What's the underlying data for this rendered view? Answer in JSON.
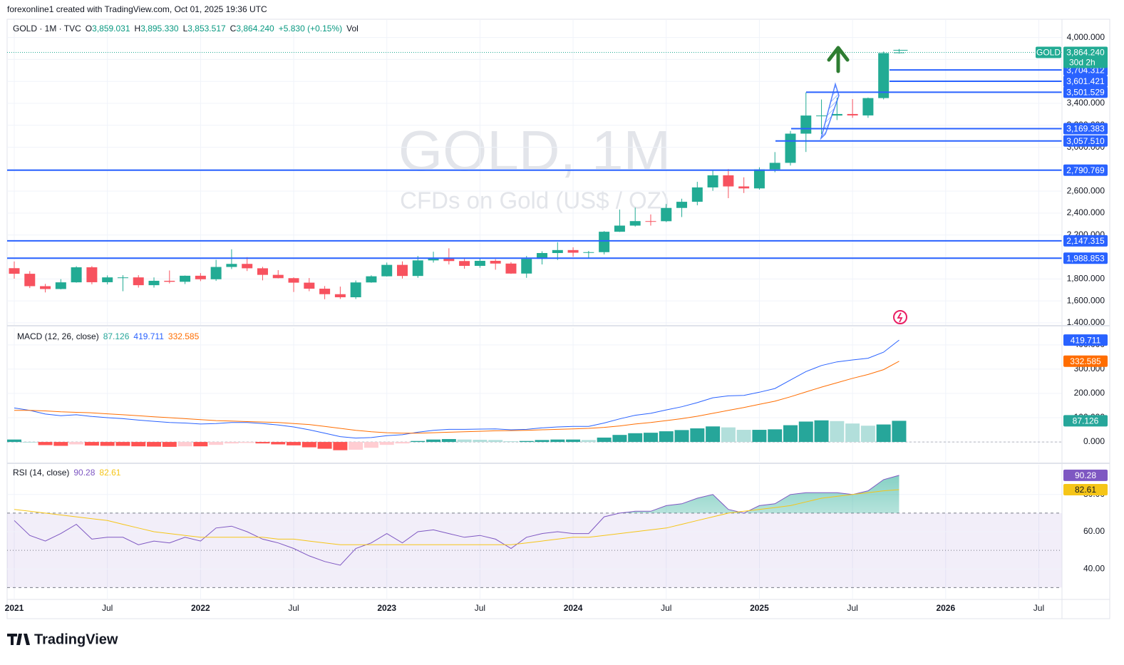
{
  "header": {
    "credit": "forexonline1 created with TradingView.com, Oct 01, 2025 19:36 UTC",
    "symbol": "GOLD · 1M · TVC",
    "o_key": "O",
    "o_val": "3,859.031",
    "h_key": "H",
    "h_val": "3,895.330",
    "l_key": "L",
    "l_val": "3,853.517",
    "c_key": "C",
    "c_val": "3,864.240",
    "change": "+5.830 (+0.15%)",
    "vol": "Vol"
  },
  "watermark": {
    "title": "GOLD, 1M",
    "subtitle": "CFDs on Gold (US$ / OZ)"
  },
  "footer": {
    "brand": "TradingView"
  },
  "chart_data": [
    {
      "type": "candlestick",
      "x": [
        "2021-01",
        "2021-02",
        "2021-03",
        "2021-04",
        "2021-05",
        "2021-06",
        "2021-07",
        "2021-08",
        "2021-09",
        "2021-10",
        "2021-11",
        "2021-12",
        "2022-01",
        "2022-02",
        "2022-03",
        "2022-04",
        "2022-05",
        "2022-06",
        "2022-07",
        "2022-08",
        "2022-09",
        "2022-10",
        "2022-11",
        "2022-12",
        "2023-01",
        "2023-02",
        "2023-03",
        "2023-04",
        "2023-05",
        "2023-06",
        "2023-07",
        "2023-08",
        "2023-09",
        "2023-10",
        "2023-11",
        "2023-12",
        "2024-01",
        "2024-02",
        "2024-03",
        "2024-04",
        "2024-05",
        "2024-06",
        "2024-07",
        "2024-08",
        "2024-09",
        "2024-10",
        "2024-11",
        "2024-12",
        "2025-01",
        "2025-02",
        "2025-03",
        "2025-04",
        "2025-05",
        "2025-06",
        "2025-07",
        "2025-08",
        "2025-09",
        "2025-10"
      ],
      "open": [
        1898,
        1847,
        1734,
        1708,
        1769,
        1906,
        1770,
        1814,
        1814,
        1743,
        1783,
        1774,
        1829,
        1797,
        1909,
        1937,
        1897,
        1837,
        1807,
        1766,
        1711,
        1661,
        1633,
        1768,
        1824,
        1928,
        1827,
        1969,
        1990,
        1963,
        1919,
        1965,
        1940,
        1849,
        1983,
        2036,
        2063,
        2039,
        2044,
        2230,
        2286,
        2327,
        2326,
        2447,
        2503,
        2634,
        2744,
        2643,
        2625,
        2798,
        2858,
        3124,
        3289,
        3289,
        3303,
        3290,
        3448,
        3859.031
      ],
      "high": [
        1959,
        1871,
        1755,
        1798,
        1916,
        1917,
        1832,
        1834,
        1834,
        1814,
        1877,
        1831,
        1853,
        1974,
        2070,
        1998,
        1910,
        1880,
        1814,
        1808,
        1735,
        1730,
        1786,
        1833,
        1949,
        1960,
        2009,
        2048,
        2079,
        1983,
        1987,
        1980,
        1953,
        2009,
        2052,
        2135,
        2088,
        2055,
        2236,
        2432,
        2450,
        2388,
        2483,
        2531,
        2685,
        2790,
        2801,
        2726,
        2817,
        2956,
        3148,
        3500,
        3435,
        3452,
        3439,
        3453,
        3872,
        3895.33
      ],
      "low": [
        1802,
        1717,
        1677,
        1705,
        1766,
        1751,
        1750,
        1688,
        1721,
        1721,
        1759,
        1753,
        1780,
        1782,
        1890,
        1872,
        1787,
        1805,
        1681,
        1688,
        1615,
        1618,
        1617,
        1765,
        1822,
        1804,
        1810,
        1949,
        1932,
        1893,
        1902,
        1884,
        1846,
        1810,
        1932,
        1973,
        2002,
        1984,
        2024,
        2228,
        2277,
        2286,
        2318,
        2364,
        2471,
        2603,
        2536,
        2583,
        2614,
        2772,
        2833,
        2957,
        3120,
        3248,
        3268,
        3268,
        3436,
        3853.517
      ],
      "close": [
        1847,
        1734,
        1708,
        1769,
        1906,
        1770,
        1814,
        1814,
        1743,
        1783,
        1774,
        1829,
        1797,
        1909,
        1937,
        1897,
        1837,
        1807,
        1766,
        1711,
        1661,
        1633,
        1768,
        1824,
        1928,
        1827,
        1969,
        1990,
        1963,
        1919,
        1965,
        1940,
        1849,
        1983,
        2036,
        2063,
        2039,
        2044,
        2230,
        2286,
        2327,
        2326,
        2447,
        2503,
        2634,
        2744,
        2643,
        2625,
        2798,
        2858,
        3124,
        3289,
        3289,
        3303,
        3290,
        3448,
        3858,
        3864.24
      ],
      "up_color": "#22ab94",
      "down_color": "#f7525f",
      "ylim": [
        1380,
        4160
      ],
      "yticks": [
        {
          "value": 1400,
          "label": "1,400.000"
        },
        {
          "value": 1600,
          "label": "1,600.000"
        },
        {
          "value": 1800,
          "label": "1,800.000"
        },
        {
          "value": 2000,
          "label": "2,000.000"
        },
        {
          "value": 2200,
          "label": "2,200.000"
        },
        {
          "value": 2400,
          "label": "2,400.000"
        },
        {
          "value": 2600,
          "label": "2,600.000"
        },
        {
          "value": 2800,
          "label": "2,800.000"
        },
        {
          "value": 3000,
          "label": "3,000.000"
        },
        {
          "value": 3200,
          "label": "3,200.000"
        },
        {
          "value": 3400,
          "label": "3,400.000"
        },
        {
          "value": 3600,
          "label": "3,600.000"
        },
        {
          "value": 3800,
          "label": "3,800.000"
        },
        {
          "value": 4000,
          "label": "4,000.000"
        }
      ],
      "xticks": [
        {
          "value": "2021-01",
          "label": "2021"
        },
        {
          "value": "2021-07",
          "label": "Jul"
        },
        {
          "value": "2022-01",
          "label": "2022"
        },
        {
          "value": "2022-07",
          "label": "Jul"
        },
        {
          "value": "2023-01",
          "label": "2023"
        },
        {
          "value": "2023-07",
          "label": "Jul"
        },
        {
          "value": "2024-01",
          "label": "2024"
        },
        {
          "value": "2024-07",
          "label": "Jul"
        },
        {
          "value": "2025-01",
          "label": "2025"
        },
        {
          "value": "2025-07",
          "label": "Jul"
        },
        {
          "value": "2026-01",
          "label": "2026"
        },
        {
          "value": "2026-07",
          "label": "Jul"
        }
      ],
      "grid": true,
      "levels": [
        {
          "value": 3704.312,
          "label": "3,704.312"
        },
        {
          "value": 3601.421,
          "label": "3,601.421"
        },
        {
          "value": 3501.529,
          "label": "3,501.529"
        },
        {
          "value": 3169.383,
          "label": "3,169.383"
        },
        {
          "value": 3057.51,
          "label": "3,057.510"
        },
        {
          "value": 2790.769,
          "label": "2,790.769"
        },
        {
          "value": 2147.315,
          "label": "2,147.315"
        },
        {
          "value": 1988.853,
          "label": "1,988.853"
        }
      ],
      "level_color": "#2962ff",
      "last_price": {
        "value": 3864.24,
        "label": "3,864.240",
        "tag": "GOLD",
        "countdown": "30d 2h"
      }
    },
    {
      "type": "macd",
      "title": "MACD (12, 26, close)",
      "ylim": [
        -82,
        470
      ],
      "yticks": [
        {
          "value": 0,
          "label": "0.000"
        },
        {
          "value": 100,
          "label": "100.000"
        },
        {
          "value": 200,
          "label": "200.000"
        },
        {
          "value": 300,
          "label": "300.000"
        },
        {
          "value": 400,
          "label": "400.000"
        }
      ],
      "hist_colors": {
        "up_rising": "#26a69a",
        "up_falling": "#b2dfdb",
        "down_falling": "#ff5252",
        "down_rising": "#ffcdd2"
      },
      "series": [
        {
          "kind": "histogram",
          "last_label": "87.126",
          "color": "#26a69a",
          "values": [
            10,
            0,
            -13,
            -16,
            -10,
            -15,
            -16,
            -16,
            -18,
            -19,
            -20,
            -18,
            -18,
            -12,
            -6,
            -4,
            -6,
            -10,
            -14,
            -22,
            -28,
            -34,
            -32,
            -24,
            -12,
            -6,
            4,
            10,
            12,
            10,
            9,
            8,
            3,
            4,
            8,
            10,
            10,
            8,
            18,
            29,
            36,
            38,
            44,
            49,
            56,
            64,
            60,
            50,
            50,
            52,
            69,
            84,
            89,
            86,
            76,
            67,
            72,
            87.126
          ]
        },
        {
          "kind": "line",
          "last_label": "419.711",
          "color": "#2962ff",
          "values": [
            140,
            130,
            115,
            108,
            112,
            105,
            100,
            96,
            90,
            85,
            80,
            78,
            74,
            76,
            80,
            80,
            76,
            70,
            62,
            50,
            36,
            22,
            16,
            18,
            26,
            30,
            40,
            48,
            52,
            52,
            53,
            54,
            50,
            52,
            58,
            62,
            64,
            64,
            78,
            95,
            110,
            118,
            132,
            145,
            162,
            182,
            190,
            192,
            205,
            220,
            255,
            290,
            315,
            330,
            338,
            345,
            370,
            419.711
          ]
        },
        {
          "kind": "line",
          "last_label": "332.585",
          "color": "#ff6d00",
          "values": [
            130,
            130,
            128,
            124,
            122,
            120,
            116,
            112,
            108,
            104,
            100,
            96,
            92,
            88,
            86,
            84,
            82,
            80,
            76,
            72,
            64,
            56,
            48,
            42,
            38,
            36,
            36,
            38,
            40,
            42,
            44,
            46,
            47,
            48,
            50,
            52,
            54,
            56,
            60,
            66,
            74,
            80,
            88,
            96,
            106,
            118,
            130,
            142,
            155,
            168,
            186,
            206,
            226,
            244,
            262,
            278,
            298,
            332.585
          ]
        }
      ]
    },
    {
      "type": "rsi",
      "title": "RSI (14, close)",
      "ylim": [
        24,
        96
      ],
      "yticks": [
        {
          "value": 40,
          "label": "40.00"
        },
        {
          "value": 60,
          "label": "60.00"
        },
        {
          "value": 80,
          "label": "80.00"
        }
      ],
      "bands": [
        30,
        50,
        70
      ],
      "series": [
        {
          "last_label": "90.28",
          "color": "#7e57c2",
          "values": [
            66,
            58,
            55,
            59,
            64,
            56,
            57,
            57,
            53,
            55,
            54,
            57,
            55,
            62,
            63,
            60,
            56,
            54,
            51,
            47,
            44,
            42,
            51,
            54,
            59,
            54,
            60,
            61,
            59,
            57,
            58,
            56,
            51,
            57,
            59,
            60,
            59,
            59,
            68,
            70,
            71,
            71,
            74,
            75,
            78,
            80,
            72,
            70,
            74,
            75,
            80,
            81,
            81,
            81,
            80,
            82,
            88,
            90.28
          ]
        },
        {
          "last_label": "82.61",
          "color": "#f5c518",
          "values": [
            72,
            71,
            70,
            69,
            68,
            67,
            66,
            64,
            62,
            60,
            59,
            58,
            57,
            57,
            57,
            57,
            57,
            56,
            56,
            55,
            54,
            53,
            53,
            53,
            53,
            53,
            53,
            53,
            53,
            53,
            53,
            53,
            53,
            54,
            55,
            56,
            57,
            57,
            58,
            59,
            60,
            61,
            62,
            64,
            66,
            68,
            70,
            71,
            72,
            73,
            74,
            76,
            78,
            79,
            80,
            81,
            82,
            82.61
          ]
        }
      ]
    }
  ]
}
